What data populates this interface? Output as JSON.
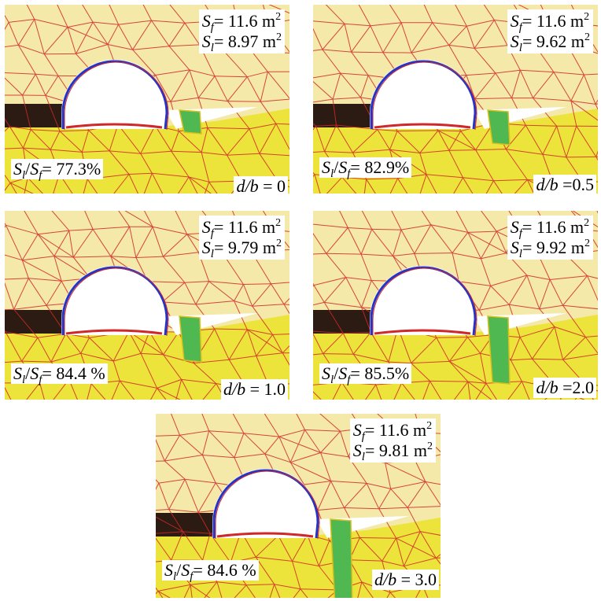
{
  "colors": {
    "upper_layer": "#f4e9a8",
    "lower_layer": "#ece43a",
    "dark_layer": "#2b1b12",
    "mesh_line": "#d02828",
    "tunnel_outline": "#2434c8",
    "grout_zone": "#4fb850",
    "cavity": "#ffffff"
  },
  "panels": [
    {
      "sf_symbol": "S",
      "sf_sub": "f",
      "sf_text": "= 11.6 m",
      "sf_sup": "2",
      "sl_symbol": "S",
      "sl_sub": "l",
      "sl_text": "= 8.97 m",
      "sl_sup": "2",
      "ratio_s1": "S",
      "ratio_sub1": "l",
      "ratio_slash": "/",
      "ratio_s2": "S",
      "ratio_sub2": "f",
      "ratio_value": "= 77.3%",
      "db_label": "d/b",
      "db_value": " = 0",
      "grout_depth_ratio": 0
    },
    {
      "sf_symbol": "S",
      "sf_sub": "f",
      "sf_text": "= 11.6 m",
      "sf_sup": "2",
      "sl_symbol": "S",
      "sl_sub": "l",
      "sl_text": "= 9.62 m",
      "sl_sup": "2",
      "ratio_s1": "S",
      "ratio_sub1": "l",
      "ratio_slash": "/",
      "ratio_s2": "S",
      "ratio_sub2": "f",
      "ratio_value": "= 82.9%",
      "db_label": "d/b",
      "db_value": " =0.5",
      "grout_depth_ratio": 0.5
    },
    {
      "sf_symbol": "S",
      "sf_sub": "f",
      "sf_text": "= 11.6 m",
      "sf_sup": "2",
      "sl_symbol": "S",
      "sl_sub": "l",
      "sl_text": "= 9.79 m",
      "sl_sup": "2",
      "ratio_s1": "S",
      "ratio_sub1": "l",
      "ratio_slash": "/",
      "ratio_s2": "S",
      "ratio_sub2": "f",
      "ratio_value": "= 84.4 %",
      "db_label": "d/b",
      "db_value": " = 1.0",
      "grout_depth_ratio": 1.0
    },
    {
      "sf_symbol": "S",
      "sf_sub": "f",
      "sf_text": "= 11.6 m",
      "sf_sup": "2",
      "sl_symbol": "S",
      "sl_sub": "l",
      "sl_text": "= 9.92 m",
      "sl_sup": "2",
      "ratio_s1": "S",
      "ratio_sub1": "l",
      "ratio_slash": "/",
      "ratio_s2": "S",
      "ratio_sub2": "f",
      "ratio_value": "= 85.5%",
      "db_label": "d/b",
      "db_value": " =2.0",
      "grout_depth_ratio": 2.0
    },
    {
      "sf_symbol": "S",
      "sf_sub": "f",
      "sf_text": "= 11.6 m",
      "sf_sup": "2",
      "sl_symbol": "S",
      "sl_sub": "l",
      "sl_text": "= 9.81 m",
      "sl_sup": "2",
      "ratio_s1": "S",
      "ratio_sub1": "l",
      "ratio_slash": "/",
      "ratio_s2": "S",
      "ratio_sub2": "f",
      "ratio_value": "= 84.6 %",
      "db_label": "d/b",
      "db_value": " = 3.0",
      "grout_depth_ratio": 3.0
    }
  ]
}
